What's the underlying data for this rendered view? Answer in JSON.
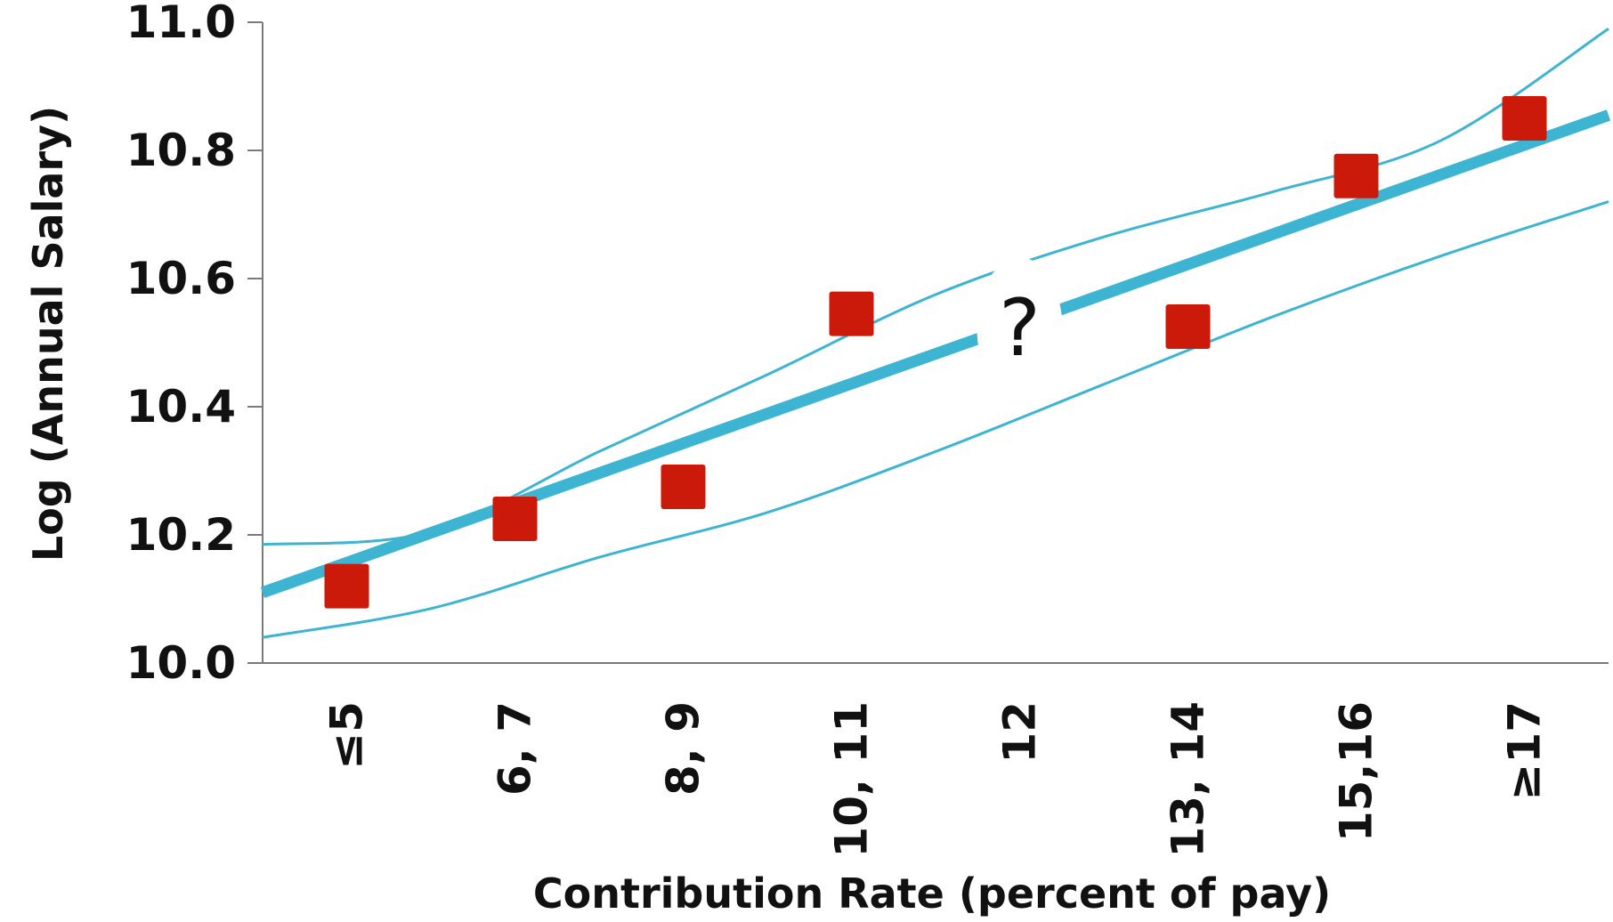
{
  "chart_data": {
    "type": "scatter",
    "title": "",
    "xlabel": "Contribution Rate (percent of pay)",
    "ylabel": "Log (Annual Salary)",
    "categories": [
      "≤5",
      "6, 7",
      "8, 9",
      "10, 11",
      "12",
      "13, 14",
      "15,16",
      "≥17"
    ],
    "y_ticks": [
      "10.0",
      "10.2",
      "10.4",
      "10.6",
      "10.8",
      "11.0"
    ],
    "ylim": [
      10.0,
      11.0
    ],
    "grid": false,
    "points": [
      {
        "category": "≤5",
        "value": 10.12
      },
      {
        "category": "6, 7",
        "value": 10.225
      },
      {
        "category": "8, 9",
        "value": 10.275
      },
      {
        "category": "10, 11",
        "value": 10.545
      },
      {
        "category": "12",
        "value": null
      },
      {
        "category": "13, 14",
        "value": 10.525
      },
      {
        "category": "15,16",
        "value": 10.76
      },
      {
        "category": "≥17",
        "value": 10.85
      }
    ],
    "missing_annotation": {
      "category": "12",
      "text": "?"
    },
    "fit_line": {
      "start_value": 10.11,
      "end_value": 10.855
    },
    "upper_band": [
      10.185,
      10.205,
      10.33,
      10.45,
      10.575,
      10.665,
      10.735,
      10.815,
      10.99
    ],
    "lower_band": [
      10.04,
      10.085,
      10.165,
      10.235,
      10.33,
      10.435,
      10.54,
      10.635,
      10.72
    ],
    "colors": {
      "marker": "#cc1a0a",
      "line": "#3db4d2",
      "axis": "#7a7a7a",
      "text": "#111111"
    }
  }
}
